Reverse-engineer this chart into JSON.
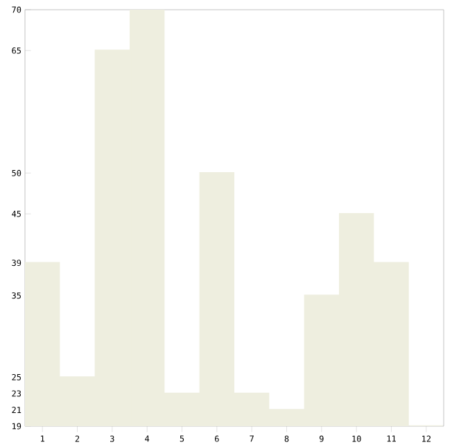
{
  "chart_data": {
    "type": "bar",
    "categories": [
      "1",
      "2",
      "3",
      "4",
      "5",
      "6",
      "7",
      "8",
      "9",
      "10",
      "11",
      "12"
    ],
    "values": [
      39,
      25,
      65,
      70,
      23,
      50,
      23,
      21,
      35,
      45,
      39,
      19
    ],
    "color": "#eeeedf",
    "ylim": [
      19,
      70
    ],
    "yticks": [
      19,
      21,
      23,
      25,
      35,
      39,
      45,
      50,
      65,
      70
    ],
    "grid": false
  }
}
